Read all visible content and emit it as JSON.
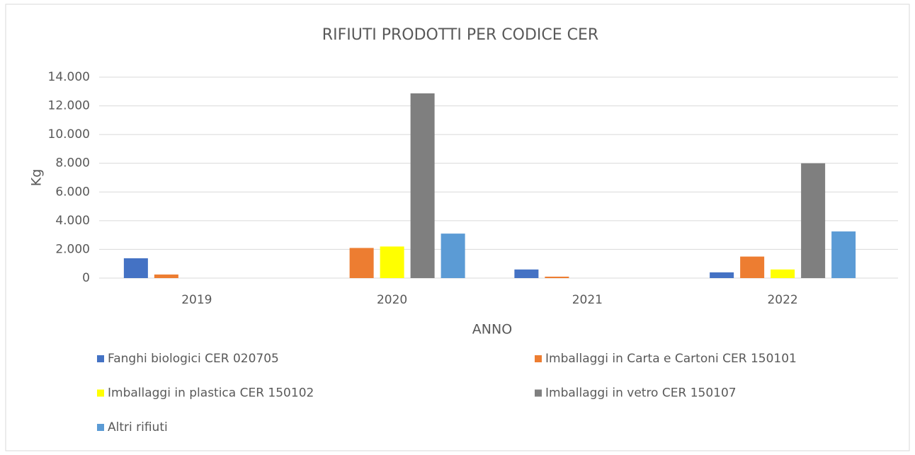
{
  "chart_data": {
    "type": "bar",
    "title": "RIFIUTI PRODOTTI PER CODICE CER",
    "x_label": "ANNO",
    "y_label": "Kg",
    "categories": [
      "2019",
      "2020",
      "2021",
      "2022"
    ],
    "series": [
      {
        "name": "Fanghi biologici CER 020705",
        "color": "#4472c4",
        "values": [
          1380,
          0,
          600,
          400
        ]
      },
      {
        "name": "Imballaggi in Carta e Cartoni CER 150101",
        "color": "#ed7d31",
        "values": [
          250,
          2100,
          100,
          1500
        ]
      },
      {
        "name": "Imballaggi in plastica CER 150102",
        "color": "#ffff00",
        "values": [
          0,
          2200,
          0,
          600
        ]
      },
      {
        "name": "Imballaggi in vetro CER 150107",
        "color": "#7f7f7f",
        "values": [
          0,
          12870,
          0,
          8000
        ]
      },
      {
        "name": "Altri rifiuti",
        "color": "#5b9bd5",
        "values": [
          0,
          3100,
          0,
          3250
        ]
      }
    ],
    "ylim": [
      0,
      14000
    ],
    "yticks": [
      0,
      {
        "value": 2000,
        "label": "2.000"
      },
      {
        "value": 4000,
        "label": "4.000"
      },
      {
        "value": 6000,
        "label": "6.000"
      },
      {
        "value": 8000,
        "label": "8.000"
      },
      {
        "value": 10000,
        "label": "10.000"
      },
      {
        "value": 12000,
        "label": "12.000"
      },
      {
        "value": 14000,
        "label": "14.000"
      }
    ],
    "grid": true,
    "legend": "bottom"
  }
}
